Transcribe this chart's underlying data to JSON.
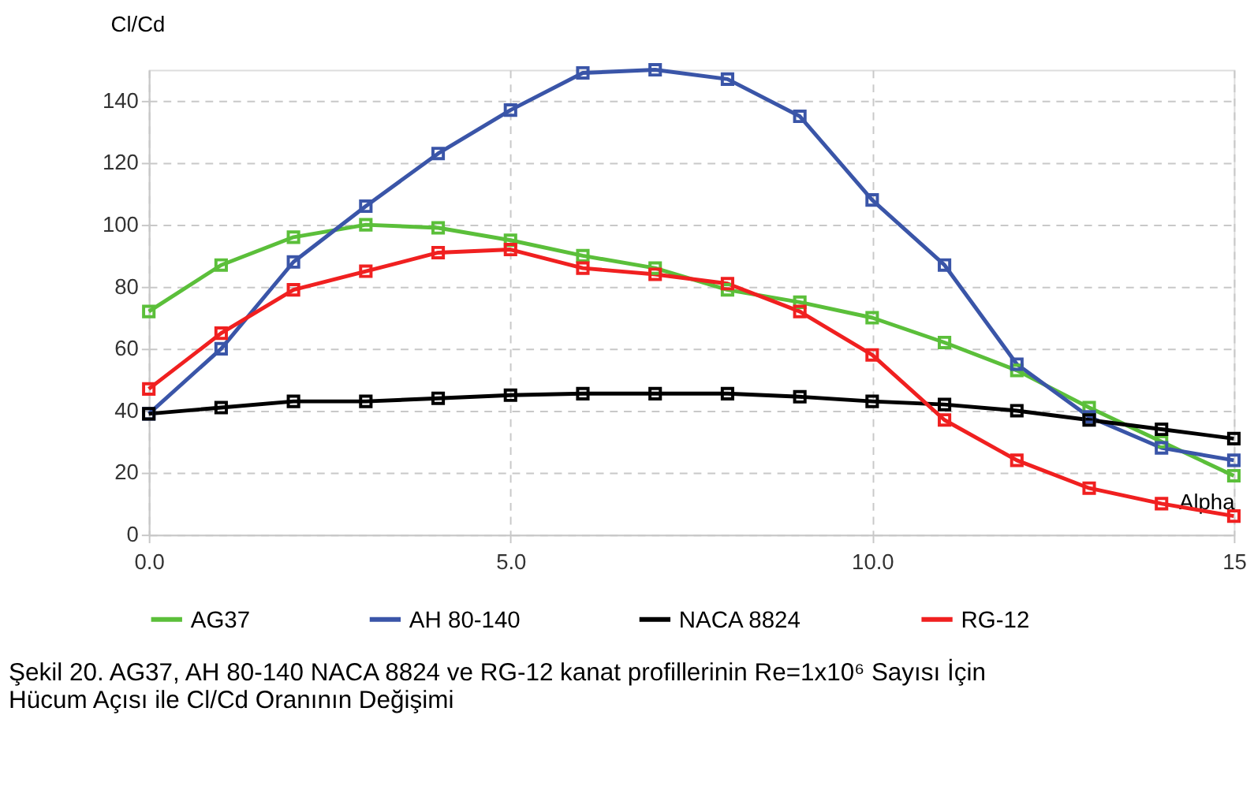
{
  "chart_data": {
    "type": "line",
    "xlabel": "Alpha",
    "ylabel": "Cl/Cd",
    "x": [
      0,
      1,
      2,
      3,
      4,
      5,
      6,
      7,
      8,
      9,
      10,
      11,
      12,
      13,
      14,
      15
    ],
    "series": [
      {
        "name": "AG37",
        "color": "#5bbf3a",
        "values": [
          72,
          87,
          96,
          100,
          99,
          95,
          90,
          86,
          79,
          75,
          70,
          62,
          53,
          41,
          30,
          19
        ]
      },
      {
        "name": "AH 80-140",
        "color": "#3a55a8",
        "values": [
          39,
          60,
          88,
          106,
          123,
          137,
          149,
          150,
          147,
          135,
          108,
          87,
          55,
          38,
          28,
          24
        ]
      },
      {
        "name": "NACA 8824",
        "color": "#000000",
        "values": [
          39,
          41,
          43,
          43,
          44,
          45,
          45.5,
          45.5,
          45.5,
          44.5,
          43,
          42,
          40,
          37,
          34,
          31
        ]
      },
      {
        "name": "RG-12",
        "color": "#f02020",
        "values": [
          47,
          65,
          79,
          85,
          91,
          92,
          86,
          84,
          81,
          72,
          58,
          37,
          24,
          15,
          10,
          6
        ]
      }
    ],
    "xlim": [
      0,
      15
    ],
    "xticks": [
      {
        "value": 0,
        "label": "0.0"
      },
      {
        "value": 5,
        "label": "5.0"
      },
      {
        "value": 10,
        "label": "10.0"
      },
      {
        "value": 15,
        "label": "15"
      }
    ],
    "ylim": [
      0,
      150
    ],
    "yticks": [
      0,
      20,
      40,
      60,
      80,
      100,
      120,
      140
    ],
    "grid": true,
    "legend": "bottom",
    "marker": "square",
    "line_style": "solid",
    "annotations": [
      "Şekil 20. AG37, AH 80-140 NACA 8824 ve RG-12 kanat profillerinin Re=1x10⁶ Sayısı İçin Hücum Açısı ile Cl/Cd Oranının Değişimi"
    ]
  }
}
